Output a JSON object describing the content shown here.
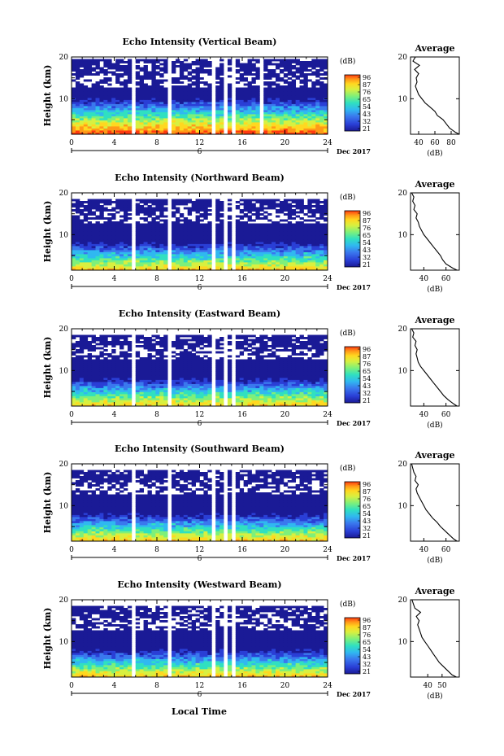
{
  "figure": {
    "xlabel": "Local Time",
    "date_label": "Dec 2017",
    "day_label": "6",
    "ylabel": "Height (km)",
    "avg_title": "Average",
    "avg_xlabel": "(dB)",
    "colorbar_unit": "(dB)",
    "colorbar_ticks": [
      "96",
      "87",
      "76",
      "65",
      "54",
      "43",
      "32",
      "21"
    ],
    "colormap": [
      "#1a1a96",
      "#2a3fd6",
      "#3a78ee",
      "#30b8f0",
      "#30e0c0",
      "#7ef07a",
      "#d8f040",
      "#ffd820",
      "#ff9a18",
      "#ff3a10"
    ]
  },
  "chart_data": [
    {
      "type": "heatmap",
      "title": "Echo Intensity (Vertical Beam)",
      "xlabel": "",
      "ylabel": "Height (km)",
      "xlim": [
        0,
        24
      ],
      "ylim": [
        1.5,
        20
      ],
      "x_ticks": [
        0,
        4,
        8,
        12,
        16,
        20,
        24
      ],
      "y_ticks": [
        10,
        20
      ],
      "colorbar": {
        "label": "(dB)",
        "ticks": [
          21,
          32,
          43,
          54,
          65,
          76,
          87,
          96
        ]
      },
      "data_gaps_hours": [
        [
          5.6,
          6.0
        ],
        [
          8.9,
          9.3
        ],
        [
          12.6,
          12.9
        ],
        [
          13.3,
          13.6
        ],
        [
          14.4,
          14.6
        ],
        [
          15.1,
          15.5
        ],
        [
          17.2,
          17.4
        ],
        [
          17.8,
          18.1
        ]
      ],
      "average_profile": {
        "title": "Average",
        "xlabel": "(dB)",
        "xlim": [
          30,
          90
        ],
        "x_ticks": [
          40,
          60,
          80
        ],
        "y_ticks": [
          10,
          20
        ],
        "height_km": [
          1.5,
          2,
          3,
          4,
          5,
          6,
          7,
          8,
          9,
          10,
          11,
          12,
          13,
          14,
          15,
          16,
          17,
          18,
          19,
          20
        ],
        "db": [
          90,
          85,
          78,
          74,
          70,
          63,
          60,
          54,
          48,
          44,
          40,
          38,
          36,
          38,
          37,
          40,
          35,
          41,
          33,
          36
        ]
      }
    },
    {
      "type": "heatmap",
      "title": "Echo Intensity (Northward Beam)",
      "xlabel": "",
      "ylabel": "Height (km)",
      "xlim": [
        0,
        24
      ],
      "ylim": [
        1.5,
        20
      ],
      "x_ticks": [
        0,
        4,
        8,
        12,
        16,
        20,
        24
      ],
      "y_ticks": [
        10,
        20
      ],
      "colorbar": {
        "label": "(dB)",
        "ticks": [
          21,
          32,
          43,
          54,
          65,
          76,
          87,
          96
        ]
      },
      "data_gaps_hours": [
        [
          5.6,
          6.0
        ],
        [
          8.9,
          9.3
        ],
        [
          12.6,
          12.9
        ],
        [
          13.3,
          13.6
        ],
        [
          14.4,
          14.6
        ],
        [
          15.1,
          15.5
        ],
        [
          17.2,
          17.4
        ]
      ],
      "average_profile": {
        "title": "Average",
        "xlabel": "(dB)",
        "xlim": [
          28,
          72
        ],
        "x_ticks": [
          40,
          60
        ],
        "y_ticks": [
          10,
          20
        ],
        "height_km": [
          1.5,
          2,
          3,
          4,
          5,
          6,
          7,
          8,
          9,
          10,
          11,
          12,
          13,
          14,
          15,
          16,
          17,
          18,
          19,
          20
        ],
        "db": [
          70,
          66,
          60,
          57,
          55,
          52,
          49,
          46,
          43,
          40,
          38,
          36,
          35,
          33,
          34,
          31,
          32,
          30,
          31,
          29
        ]
      }
    },
    {
      "type": "heatmap",
      "title": "Echo Intensity (Eastward Beam)",
      "xlabel": "",
      "ylabel": "Height (km)",
      "xlim": [
        0,
        24
      ],
      "ylim": [
        1.5,
        20
      ],
      "x_ticks": [
        0,
        4,
        8,
        12,
        16,
        20,
        24
      ],
      "y_ticks": [
        10,
        20
      ],
      "colorbar": {
        "label": "(dB)",
        "ticks": [
          21,
          32,
          43,
          54,
          65,
          76,
          87,
          96
        ]
      },
      "data_gaps_hours": [
        [
          5.6,
          6.0
        ],
        [
          8.9,
          9.3
        ],
        [
          12.6,
          12.9
        ],
        [
          13.3,
          13.6
        ],
        [
          14.4,
          14.6
        ],
        [
          15.1,
          15.5
        ],
        [
          17.2,
          17.4
        ]
      ],
      "average_profile": {
        "title": "Average",
        "xlabel": "(dB)",
        "xlim": [
          28,
          72
        ],
        "x_ticks": [
          40,
          60
        ],
        "y_ticks": [
          10,
          20
        ],
        "height_km": [
          1.5,
          2,
          3,
          4,
          5,
          6,
          7,
          8,
          9,
          10,
          11,
          12,
          13,
          14,
          15,
          16,
          17,
          18,
          19,
          20
        ],
        "db": [
          70,
          67,
          62,
          58,
          55,
          52,
          49,
          46,
          43,
          40,
          37,
          35,
          34,
          33,
          34,
          32,
          33,
          30,
          31,
          29
        ]
      }
    },
    {
      "type": "heatmap",
      "title": "Echo Intensity (Southward Beam)",
      "xlabel": "",
      "ylabel": "Height (km)",
      "xlim": [
        0,
        24
      ],
      "ylim": [
        1.5,
        20
      ],
      "x_ticks": [
        0,
        4,
        8,
        12,
        16,
        20,
        24
      ],
      "y_ticks": [
        10,
        20
      ],
      "colorbar": {
        "label": "(dB)",
        "ticks": [
          21,
          32,
          43,
          54,
          65,
          76,
          87,
          96
        ]
      },
      "data_gaps_hours": [
        [
          5.6,
          6.0
        ],
        [
          8.9,
          9.3
        ],
        [
          12.6,
          12.9
        ],
        [
          13.3,
          13.6
        ],
        [
          14.4,
          14.6
        ],
        [
          15.1,
          15.5
        ],
        [
          17.2,
          17.4
        ]
      ],
      "average_profile": {
        "title": "Average",
        "xlabel": "(dB)",
        "xlim": [
          28,
          72
        ],
        "x_ticks": [
          40,
          60
        ],
        "y_ticks": [
          10,
          20
        ],
        "height_km": [
          1.5,
          2,
          3,
          4,
          5,
          6,
          7,
          8,
          9,
          10,
          11,
          12,
          13,
          14,
          15,
          16,
          17,
          18,
          19,
          20
        ],
        "db": [
          70,
          67,
          63,
          59,
          55,
          52,
          48,
          45,
          42,
          40,
          38,
          36,
          34,
          33,
          35,
          32,
          33,
          31,
          30,
          29
        ]
      }
    },
    {
      "type": "heatmap",
      "title": "Echo Intensity (Westward Beam)",
      "xlabel": "Local Time",
      "ylabel": "Height (km)",
      "xlim": [
        0,
        24
      ],
      "ylim": [
        1.5,
        20
      ],
      "x_ticks": [
        0,
        4,
        8,
        12,
        16,
        20,
        24
      ],
      "y_ticks": [
        10,
        20
      ],
      "colorbar": {
        "label": "(dB)",
        "ticks": [
          21,
          32,
          43,
          54,
          65,
          76,
          87,
          96
        ]
      },
      "data_gaps_hours": [
        [
          5.6,
          6.0
        ],
        [
          8.9,
          9.3
        ],
        [
          12.6,
          12.9
        ],
        [
          13.3,
          13.6
        ],
        [
          14.4,
          14.6
        ],
        [
          15.1,
          15.5
        ],
        [
          17.2,
          17.4
        ]
      ],
      "average_profile": {
        "title": "Average",
        "xlabel": "(dB)",
        "xlim": [
          28,
          62
        ],
        "x_ticks": [
          40,
          50
        ],
        "y_ticks": [
          10,
          20
        ],
        "height_km": [
          1.5,
          2,
          3,
          4,
          5,
          6,
          7,
          8,
          9,
          10,
          11,
          12,
          13,
          14,
          15,
          16,
          17,
          18,
          19,
          20
        ],
        "db": [
          60,
          57,
          54,
          51,
          48,
          46,
          44,
          42,
          40,
          38,
          36,
          35,
          34,
          33,
          34,
          32,
          35,
          31,
          30,
          29
        ]
      }
    }
  ]
}
